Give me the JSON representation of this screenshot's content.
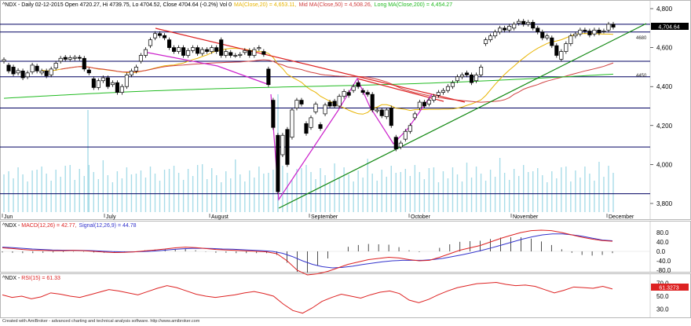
{
  "main_header": {
    "prefix": "^NDX - Daily 02-12-2015 Open 4720.27, Hi 4739.75, Lo 4704.52, Close 4704.64 (-0.2%) Vol 0",
    "ma_label": "MA(Close,20) = 4,653.11,",
    "mid_ma_label": "Mid MA(Close,50) = 4,508.26,",
    "long_ma_label": "Long MA(Close,200) = 4,454.27"
  },
  "macd_header": {
    "prefix": "^NDX - ",
    "macd_label": "MACD(12,26) = 42.77,",
    "signal_label": "Signal(12,26,9) = 44.78"
  },
  "rsi_header": {
    "prefix": "^NDX - ",
    "rsi_label": "RSI(15) = 61.33"
  },
  "footer": "Created with AmiBroker - advanced charting and technical analysis software. http://www.amibroker.com",
  "last_price_tag": "4,704.64",
  "rsi_value_tag": "61.3273",
  "level_labels": [
    "4680",
    "4450"
  ],
  "colors": {
    "ma20": "#e8b400",
    "ma50": "#d04040",
    "ma200": "#22bb22",
    "macd": "#3333cc",
    "signal": "#dd2222",
    "rsi": "#dd2222",
    "trend_red": "#dd2222",
    "trend_green": "#118811",
    "pattern_magenta": "#cc22cc",
    "level_navy": "#000060",
    "volume": "#a8dce8"
  },
  "chart_data": [
    {
      "type": "candlestick",
      "title": "^NDX - Daily 02-12-2015",
      "x_axis_labels": [
        "Jun",
        "July",
        "August",
        "September",
        "October",
        "November",
        "December"
      ],
      "y_ticks": [
        3800,
        4000,
        4200,
        4400,
        4600,
        4800
      ],
      "ylim": [
        3760,
        4840
      ],
      "last_close": 4704.64,
      "horizontal_levels": [
        4720,
        4680,
        4530,
        4450,
        4290,
        4090,
        3850
      ],
      "bars": [
        {
          "x": 5,
          "o": 4530,
          "c": 4538
        },
        {
          "x": 11,
          "o": 4510,
          "c": 4480
        },
        {
          "x": 17,
          "o": 4500,
          "c": 4465
        },
        {
          "x": 23,
          "o": 4470,
          "c": 4482
        },
        {
          "x": 29,
          "o": 4480,
          "c": 4445
        },
        {
          "x": 35,
          "o": 4450,
          "c": 4470
        },
        {
          "x": 41,
          "o": 4475,
          "c": 4510
        },
        {
          "x": 47,
          "o": 4505,
          "c": 4480
        },
        {
          "x": 53,
          "o": 4470,
          "c": 4480
        },
        {
          "x": 59,
          "o": 4480,
          "c": 4455
        },
        {
          "x": 65,
          "o": 4460,
          "c": 4490
        },
        {
          "x": 71,
          "o": 4495,
          "c": 4520
        },
        {
          "x": 77,
          "o": 4530,
          "c": 4545
        },
        {
          "x": 83,
          "o": 4550,
          "c": 4540
        },
        {
          "x": 89,
          "o": 4540,
          "c": 4548
        },
        {
          "x": 95,
          "o": 4545,
          "c": 4550
        },
        {
          "x": 101,
          "o": 4550,
          "c": 4545
        },
        {
          "x": 107,
          "o": 4545,
          "c": 4490
        },
        {
          "x": 113,
          "o": 4485,
          "c": 4470
        },
        {
          "x": 119,
          "o": 4440,
          "c": 4395
        },
        {
          "x": 125,
          "o": 4395,
          "c": 4430
        },
        {
          "x": 131,
          "o": 4430,
          "c": 4445
        },
        {
          "x": 137,
          "o": 4445,
          "c": 4400
        },
        {
          "x": 143,
          "o": 4410,
          "c": 4420
        },
        {
          "x": 149,
          "o": 4420,
          "c": 4370
        },
        {
          "x": 155,
          "o": 4370,
          "c": 4400
        },
        {
          "x": 161,
          "o": 4400,
          "c": 4460
        },
        {
          "x": 167,
          "o": 4460,
          "c": 4480
        },
        {
          "x": 173,
          "o": 4480,
          "c": 4500
        },
        {
          "x": 179,
          "o": 4530,
          "c": 4560
        },
        {
          "x": 185,
          "o": 4560,
          "c": 4590
        },
        {
          "x": 191,
          "o": 4610,
          "c": 4640
        },
        {
          "x": 197,
          "o": 4650,
          "c": 4672
        },
        {
          "x": 203,
          "o": 4672,
          "c": 4662
        },
        {
          "x": 209,
          "o": 4662,
          "c": 4650
        },
        {
          "x": 215,
          "o": 4640,
          "c": 4600
        },
        {
          "x": 221,
          "o": 4600,
          "c": 4580
        },
        {
          "x": 227,
          "o": 4580,
          "c": 4600
        },
        {
          "x": 233,
          "o": 4600,
          "c": 4560
        },
        {
          "x": 239,
          "o": 4560,
          "c": 4585
        },
        {
          "x": 245,
          "o": 4585,
          "c": 4600
        },
        {
          "x": 251,
          "o": 4600,
          "c": 4570
        },
        {
          "x": 257,
          "o": 4570,
          "c": 4590
        },
        {
          "x": 263,
          "o": 4590,
          "c": 4580
        },
        {
          "x": 269,
          "o": 4580,
          "c": 4600
        },
        {
          "x": 275,
          "o": 4600,
          "c": 4580
        },
        {
          "x": 281,
          "o": 4640,
          "c": 4560
        },
        {
          "x": 287,
          "o": 4560,
          "c": 4580
        },
        {
          "x": 293,
          "o": 4575,
          "c": 4560
        },
        {
          "x": 299,
          "o": 4560,
          "c": 4560
        },
        {
          "x": 305,
          "o": 4560,
          "c": 4565
        },
        {
          "x": 311,
          "o": 4575,
          "c": 4585
        },
        {
          "x": 317,
          "o": 4585,
          "c": 4560
        },
        {
          "x": 323,
          "o": 4560,
          "c": 4590
        },
        {
          "x": 329,
          "o": 4595,
          "c": 4600
        },
        {
          "x": 335,
          "o": 4580,
          "c": 4565
        },
        {
          "x": 341,
          "o": 4490,
          "c": 4410
        },
        {
          "x": 347,
          "o": 4330,
          "c": 4190
        },
        {
          "x": 353,
          "o": 4150,
          "c": 3860
        },
        {
          "x": 359,
          "o": 4050,
          "c": 4150
        },
        {
          "x": 365,
          "o": 4180,
          "c": 4000
        },
        {
          "x": 371,
          "o": 4140,
          "c": 4280
        },
        {
          "x": 377,
          "o": 4290,
          "c": 4330
        },
        {
          "x": 383,
          "o": 4330,
          "c": 4310
        },
        {
          "x": 389,
          "o": 4210,
          "c": 4160
        },
        {
          "x": 395,
          "o": 4190,
          "c": 4240
        },
        {
          "x": 401,
          "o": 4270,
          "c": 4310
        },
        {
          "x": 407,
          "o": 4205,
          "c": 4185
        },
        {
          "x": 413,
          "o": 4260,
          "c": 4305
        },
        {
          "x": 419,
          "o": 4320,
          "c": 4300
        },
        {
          "x": 425,
          "o": 4325,
          "c": 4300
        },
        {
          "x": 431,
          "o": 4300,
          "c": 4350
        },
        {
          "x": 437,
          "o": 4350,
          "c": 4375
        },
        {
          "x": 443,
          "o": 4370,
          "c": 4355
        },
        {
          "x": 449,
          "o": 4380,
          "c": 4400
        },
        {
          "x": 455,
          "o": 4420,
          "c": 4400
        },
        {
          "x": 461,
          "o": 4380,
          "c": 4370
        },
        {
          "x": 467,
          "o": 4370,
          "c": 4360
        },
        {
          "x": 473,
          "o": 4360,
          "c": 4280
        },
        {
          "x": 479,
          "o": 4275,
          "c": 4280
        },
        {
          "x": 485,
          "o": 4280,
          "c": 4250
        },
        {
          "x": 491,
          "o": 4245,
          "c": 4280
        },
        {
          "x": 497,
          "o": 4290,
          "c": 4200
        },
        {
          "x": 503,
          "o": 4140,
          "c": 4080
        },
        {
          "x": 509,
          "o": 4090,
          "c": 4110
        },
        {
          "x": 515,
          "o": 4130,
          "c": 4170
        },
        {
          "x": 521,
          "o": 4170,
          "c": 4200
        },
        {
          "x": 527,
          "o": 4240,
          "c": 4260
        },
        {
          "x": 533,
          "o": 4290,
          "c": 4320
        },
        {
          "x": 539,
          "o": 4320,
          "c": 4300
        },
        {
          "x": 545,
          "o": 4310,
          "c": 4330
        },
        {
          "x": 551,
          "o": 4330,
          "c": 4350
        },
        {
          "x": 557,
          "o": 4355,
          "c": 4370
        },
        {
          "x": 563,
          "o": 4370,
          "c": 4380
        },
        {
          "x": 569,
          "o": 4380,
          "c": 4400
        },
        {
          "x": 575,
          "o": 4400,
          "c": 4420
        },
        {
          "x": 581,
          "o": 4430,
          "c": 4450
        },
        {
          "x": 587,
          "o": 4450,
          "c": 4460
        },
        {
          "x": 593,
          "o": 4470,
          "c": 4460
        },
        {
          "x": 599,
          "o": 4460,
          "c": 4420
        },
        {
          "x": 605,
          "o": 4430,
          "c": 4460
        },
        {
          "x": 611,
          "o": 4460,
          "c": 4500
        },
        {
          "x": 617,
          "o": 4620,
          "c": 4640
        },
        {
          "x": 623,
          "o": 4640,
          "c": 4660
        },
        {
          "x": 629,
          "o": 4660,
          "c": 4680
        },
        {
          "x": 635,
          "o": 4680,
          "c": 4700
        },
        {
          "x": 641,
          "o": 4700,
          "c": 4690
        },
        {
          "x": 647,
          "o": 4690,
          "c": 4710
        },
        {
          "x": 653,
          "o": 4700,
          "c": 4720
        },
        {
          "x": 659,
          "o": 4725,
          "c": 4735
        },
        {
          "x": 665,
          "o": 4735,
          "c": 4720
        },
        {
          "x": 671,
          "o": 4720,
          "c": 4730
        },
        {
          "x": 677,
          "o": 4730,
          "c": 4700
        },
        {
          "x": 683,
          "o": 4700,
          "c": 4680
        },
        {
          "x": 689,
          "o": 4680,
          "c": 4650
        },
        {
          "x": 695,
          "o": 4650,
          "c": 4660
        },
        {
          "x": 701,
          "o": 4650,
          "c": 4610
        },
        {
          "x": 707,
          "o": 4610,
          "c": 4560
        },
        {
          "x": 713,
          "o": 4540,
          "c": 4580
        },
        {
          "x": 719,
          "o": 4580,
          "c": 4620
        },
        {
          "x": 725,
          "o": 4620,
          "c": 4660
        },
        {
          "x": 731,
          "o": 4660,
          "c": 4670
        },
        {
          "x": 737,
          "o": 4670,
          "c": 4690
        },
        {
          "x": 743,
          "o": 4690,
          "c": 4685
        },
        {
          "x": 749,
          "o": 4685,
          "c": 4665
        },
        {
          "x": 755,
          "o": 4670,
          "c": 4690
        },
        {
          "x": 761,
          "o": 4690,
          "c": 4675
        },
        {
          "x": 767,
          "o": 4685,
          "c": 4685
        },
        {
          "x": 773,
          "o": 4690,
          "c": 4720
        },
        {
          "x": 779,
          "o": 4720,
          "c": 4705
        }
      ]
    },
    {
      "type": "line",
      "title": "MACD(12,26)",
      "y_ticks": [
        80.0,
        40.0,
        0.0,
        -40.0,
        -80.0
      ],
      "ylim": [
        -120,
        120
      ],
      "macd_last": 42.77,
      "signal_last": 44.78,
      "series": [
        {
          "name": "MACD(12,26)",
          "values": [
            15,
            12,
            8,
            5,
            4,
            3,
            3,
            4,
            3,
            0,
            -3,
            -5,
            -4,
            -2,
            2,
            6,
            10,
            15,
            18,
            16,
            12,
            8,
            6,
            4,
            2,
            0,
            -2,
            -10,
            -40,
            -80,
            -100,
            -95,
            -85,
            -70,
            -55,
            -45,
            -35,
            -30,
            -25,
            -28,
            -35,
            -40,
            -38,
            -25,
            -10,
            5,
            15,
            25,
            40,
            55,
            68,
            80,
            88,
            90,
            88,
            80,
            70,
            60,
            52,
            46,
            43
          ]
        },
        {
          "name": "Signal(12,26,9)",
          "values": [
            18,
            16,
            13,
            10,
            8,
            6,
            5,
            5,
            4,
            3,
            1,
            -1,
            -2,
            -2,
            -1,
            1,
            4,
            8,
            11,
            13,
            13,
            12,
            10,
            9,
            7,
            5,
            3,
            0,
            -8,
            -22,
            -40,
            -55,
            -65,
            -70,
            -68,
            -63,
            -56,
            -50,
            -44,
            -40,
            -38,
            -38,
            -38,
            -35,
            -30,
            -22,
            -14,
            -5,
            5,
            16,
            28,
            40,
            52,
            62,
            70,
            74,
            74,
            70,
            64,
            56,
            48,
            45
          ]
        }
      ]
    },
    {
      "type": "line",
      "title": "RSI(15)",
      "y_ticks": [
        70.0,
        50.0,
        30.0
      ],
      "ylim": [
        20,
        80
      ],
      "rsi_last": 61.33,
      "series": [
        {
          "name": "RSI(15)",
          "values": [
            52,
            48,
            50,
            46,
            49,
            55,
            53,
            50,
            48,
            52,
            56,
            60,
            58,
            55,
            52,
            57,
            62,
            66,
            63,
            58,
            53,
            50,
            48,
            50,
            52,
            55,
            57,
            54,
            50,
            38,
            28,
            24,
            32,
            42,
            48,
            53,
            50,
            47,
            52,
            56,
            58,
            54,
            44,
            40,
            45,
            52,
            58,
            63,
            66,
            69,
            70,
            71,
            68,
            66,
            67,
            65,
            60,
            55,
            59,
            64,
            63,
            62,
            65,
            61
          ]
        }
      ]
    }
  ]
}
